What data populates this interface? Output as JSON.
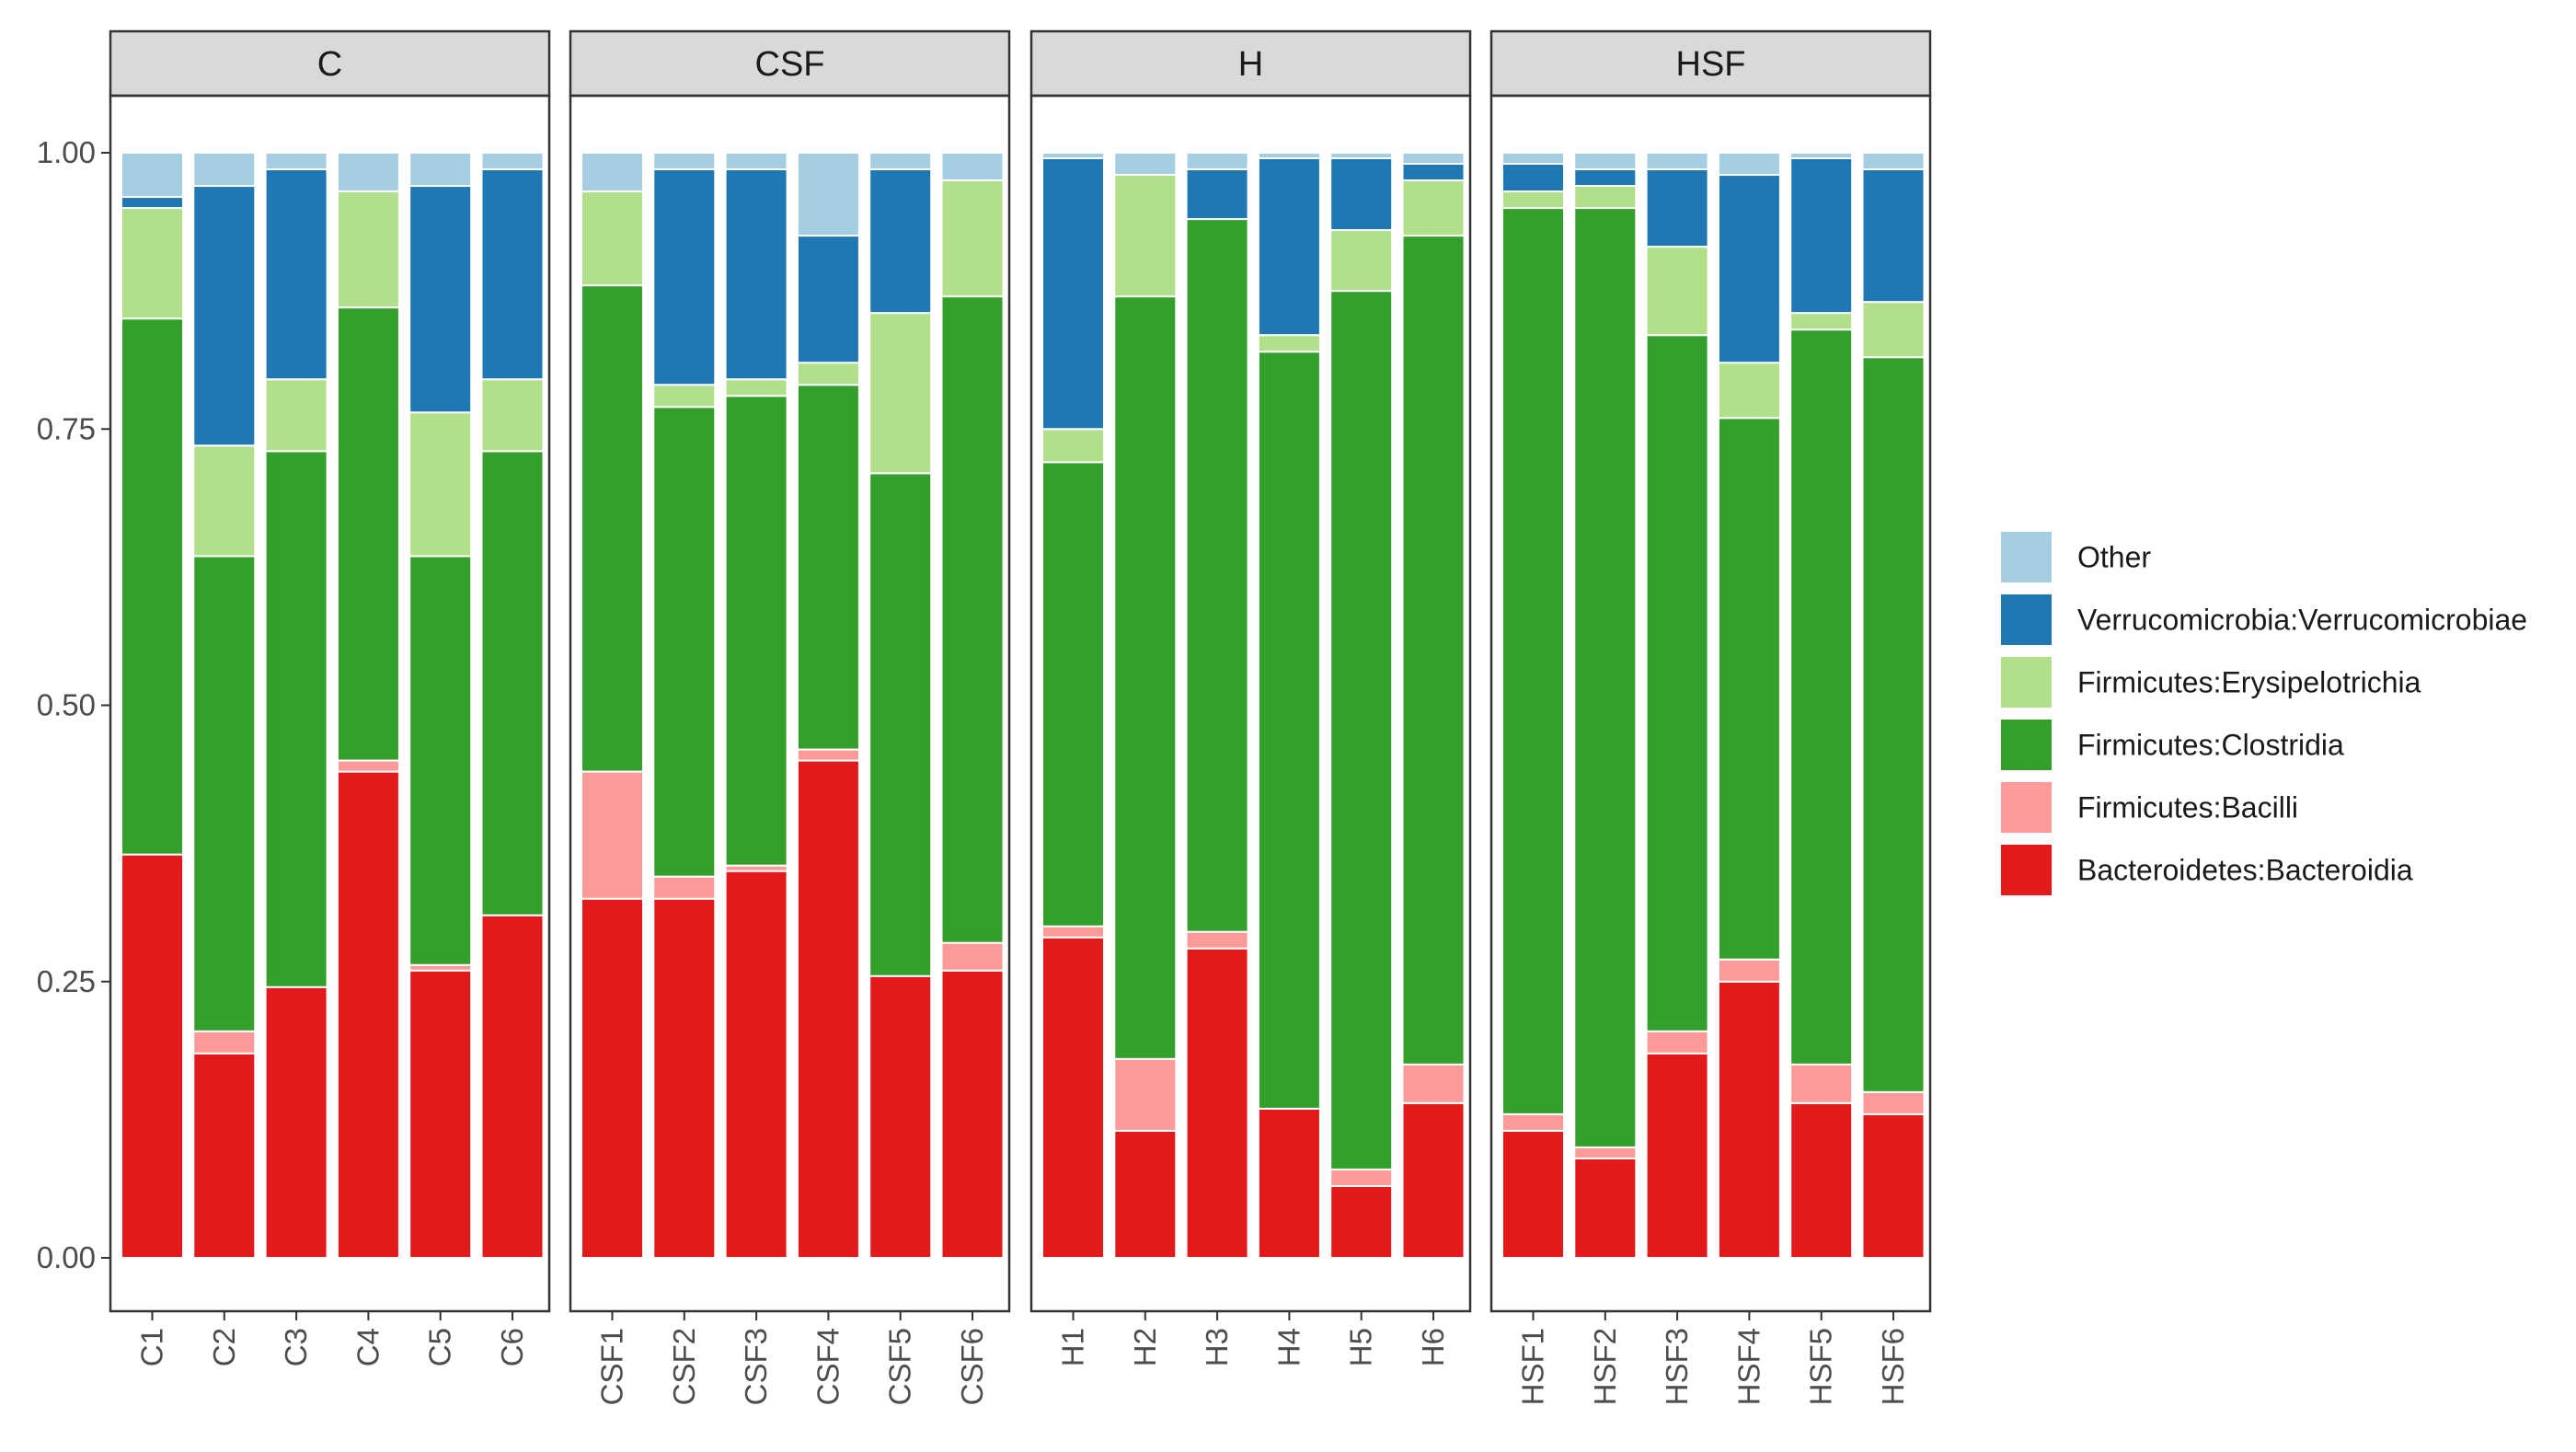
{
  "chart_data": {
    "type": "bar",
    "stacked": true,
    "title": "",
    "xlabel": "",
    "ylabel": "",
    "ylim": [
      0,
      1
    ],
    "y_ticks": [
      0,
      0.25,
      0.5,
      0.75,
      1
    ],
    "y_tick_labels": [
      "0.00",
      "0.25",
      "0.50",
      "0.75",
      "1.00"
    ],
    "legend_position": "right",
    "series": [
      {
        "name": "Bacteroidetes:Bacteroidia",
        "color": "#E31A1C"
      },
      {
        "name": "Firmicutes:Bacilli",
        "color": "#FB9A99"
      },
      {
        "name": "Firmicutes:Clostridia",
        "color": "#33A02C"
      },
      {
        "name": "Firmicutes:Erysipelotrichia",
        "color": "#B2DF8A"
      },
      {
        "name": "Verrucomicrobia:Verrucomicrobiae",
        "color": "#1F78B4"
      },
      {
        "name": "Other",
        "color": "#A6CEE3"
      }
    ],
    "legend_order": [
      "Other",
      "Verrucomicrobia:Verrucomicrobiae",
      "Firmicutes:Erysipelotrichia",
      "Firmicutes:Clostridia",
      "Firmicutes:Bacilli",
      "Bacteroidetes:Bacteroidia"
    ],
    "facets": [
      {
        "name": "C",
        "samples": [
          {
            "label": "C1",
            "values": [
              0.365,
              0.0,
              0.485,
              0.1,
              0.01,
              0.04
            ]
          },
          {
            "label": "C2",
            "values": [
              0.185,
              0.02,
              0.43,
              0.1,
              0.235,
              0.03
            ]
          },
          {
            "label": "C3",
            "values": [
              0.245,
              0.0,
              0.485,
              0.065,
              0.19,
              0.015
            ]
          },
          {
            "label": "C4",
            "values": [
              0.44,
              0.01,
              0.41,
              0.105,
              0.0,
              0.035
            ]
          },
          {
            "label": "C5",
            "values": [
              0.26,
              0.005,
              0.37,
              0.13,
              0.205,
              0.03
            ]
          },
          {
            "label": "C6",
            "values": [
              0.31,
              0.0,
              0.42,
              0.065,
              0.19,
              0.015
            ]
          }
        ]
      },
      {
        "name": "CSF",
        "samples": [
          {
            "label": "CSF1",
            "values": [
              0.325,
              0.115,
              0.44,
              0.085,
              0.0,
              0.035
            ]
          },
          {
            "label": "CSF2",
            "values": [
              0.325,
              0.02,
              0.425,
              0.02,
              0.195,
              0.015
            ]
          },
          {
            "label": "CSF3",
            "values": [
              0.35,
              0.005,
              0.425,
              0.015,
              0.19,
              0.015
            ]
          },
          {
            "label": "CSF4",
            "values": [
              0.45,
              0.01,
              0.33,
              0.02,
              0.115,
              0.075
            ]
          },
          {
            "label": "CSF5",
            "values": [
              0.255,
              0.0,
              0.455,
              0.145,
              0.13,
              0.015
            ]
          },
          {
            "label": "CSF6",
            "values": [
              0.26,
              0.025,
              0.585,
              0.105,
              0.0,
              0.025
            ]
          }
        ]
      },
      {
        "name": "H",
        "samples": [
          {
            "label": "H1",
            "values": [
              0.29,
              0.01,
              0.42,
              0.03,
              0.245,
              0.005
            ]
          },
          {
            "label": "H2",
            "values": [
              0.115,
              0.065,
              0.69,
              0.11,
              0.0,
              0.02
            ]
          },
          {
            "label": "H3",
            "values": [
              0.28,
              0.015,
              0.645,
              0.0,
              0.045,
              0.015
            ]
          },
          {
            "label": "H4",
            "values": [
              0.135,
              0.0,
              0.685,
              0.015,
              0.16,
              0.005
            ]
          },
          {
            "label": "H5",
            "values": [
              0.065,
              0.015,
              0.795,
              0.055,
              0.065,
              0.005
            ]
          },
          {
            "label": "H6",
            "values": [
              0.14,
              0.035,
              0.75,
              0.05,
              0.015,
              0.01
            ]
          }
        ]
      },
      {
        "name": "HSF",
        "samples": [
          {
            "label": "HSF1",
            "values": [
              0.115,
              0.015,
              0.82,
              0.015,
              0.025,
              0.01
            ]
          },
          {
            "label": "HSF2",
            "values": [
              0.09,
              0.01,
              0.85,
              0.02,
              0.015,
              0.015
            ]
          },
          {
            "label": "HSF3",
            "values": [
              0.185,
              0.02,
              0.63,
              0.08,
              0.07,
              0.015
            ]
          },
          {
            "label": "HSF4",
            "values": [
              0.25,
              0.02,
              0.49,
              0.05,
              0.17,
              0.02
            ]
          },
          {
            "label": "HSF5",
            "values": [
              0.14,
              0.035,
              0.665,
              0.015,
              0.14,
              0.005
            ]
          },
          {
            "label": "HSF6",
            "values": [
              0.13,
              0.02,
              0.665,
              0.05,
              0.12,
              0.015
            ]
          }
        ]
      }
    ]
  }
}
